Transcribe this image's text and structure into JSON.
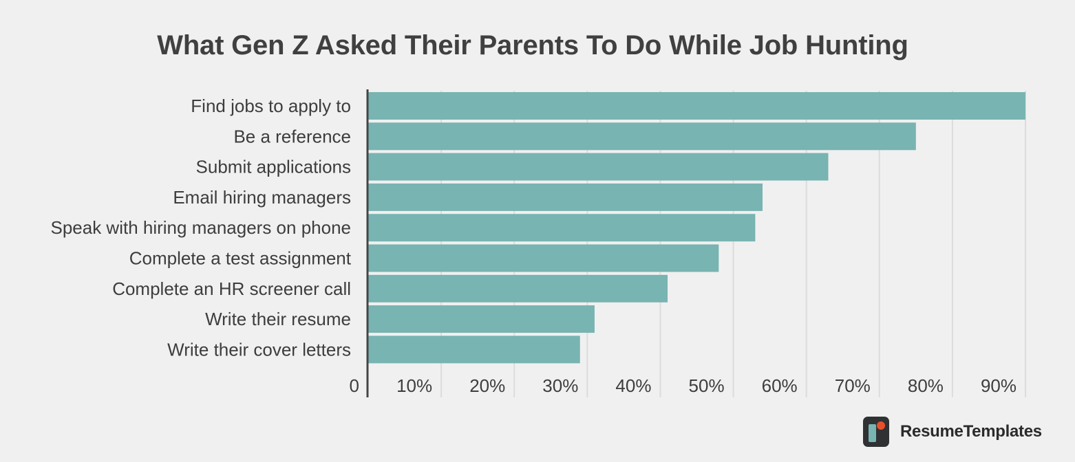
{
  "chart_data": {
    "type": "bar",
    "orientation": "horizontal",
    "title": "What Gen Z Asked Their Parents To Do While Job Hunting",
    "categories": [
      "Find jobs to apply to",
      "Be a reference",
      "Submit applications",
      "Email hiring managers",
      "Speak with hiring managers on phone",
      "Complete a test assignment",
      "Complete an HR screener call",
      "Write their resume",
      "Write their cover letters"
    ],
    "values": [
      90,
      75,
      63,
      54,
      53,
      48,
      41,
      31,
      29
    ],
    "xlim": [
      0,
      90
    ],
    "x_ticks": [
      0,
      10,
      20,
      30,
      40,
      50,
      60,
      70,
      80,
      90
    ],
    "x_tick_labels": [
      "0",
      "10%",
      "20%",
      "30%",
      "40%",
      "50%",
      "60%",
      "70%",
      "80%",
      "90%"
    ],
    "xlabel": "",
    "ylabel": "",
    "grid": "vertical",
    "legend": "none",
    "bar_color": "#78b4b1",
    "axis_color": "#444444",
    "grid_color": "#dcdcdc"
  },
  "brand": {
    "name": "ResumeTemplates",
    "icon": "resume-templates-logo-icon",
    "icon_bg": "#2f3133",
    "icon_bar_color": "#78b4b1",
    "icon_dot_color": "#e8502c"
  }
}
